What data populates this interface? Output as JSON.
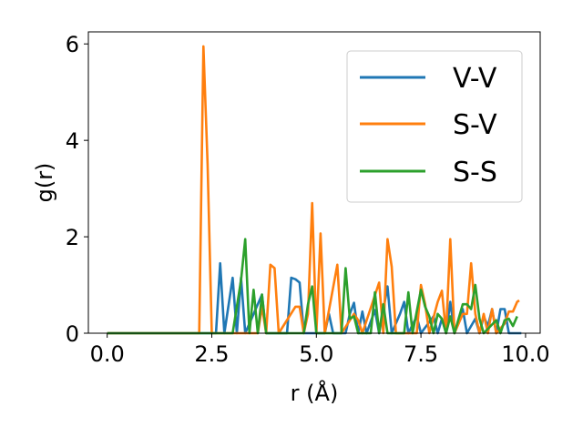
{
  "chart_data": {
    "type": "line",
    "title": "",
    "xlabel": "r (Å)",
    "ylabel": "g(r)",
    "xlim": [
      -0.45,
      10.35
    ],
    "ylim": [
      0,
      6.25
    ],
    "xticks": [
      0.0,
      2.5,
      5.0,
      7.5,
      10.0
    ],
    "xtick_labels": [
      "0.0",
      "2.5",
      "5.0",
      "7.5",
      "10.0"
    ],
    "yticks": [
      0,
      2,
      4,
      6
    ],
    "ytick_labels": [
      "0",
      "2",
      "4",
      "6"
    ],
    "grid": false,
    "legend_position": "top-right",
    "series": [
      {
        "name": "V-V",
        "color": "#1f77b4",
        "points": [
          [
            0,
            0
          ],
          [
            2.6,
            0
          ],
          [
            2.7,
            1.45
          ],
          [
            2.8,
            0
          ],
          [
            3.0,
            1.15
          ],
          [
            3.1,
            0
          ],
          [
            3.2,
            1.15
          ],
          [
            3.3,
            0
          ],
          [
            3.7,
            0.8
          ],
          [
            3.8,
            0
          ],
          [
            4.3,
            0
          ],
          [
            4.4,
            1.15
          ],
          [
            4.5,
            1.12
          ],
          [
            4.6,
            1.05
          ],
          [
            4.7,
            0
          ],
          [
            5.2,
            0
          ],
          [
            5.3,
            0.4
          ],
          [
            5.4,
            0
          ],
          [
            5.7,
            0
          ],
          [
            5.8,
            0.4
          ],
          [
            5.9,
            0.63
          ],
          [
            6.0,
            0
          ],
          [
            6.1,
            0.45
          ],
          [
            6.2,
            0
          ],
          [
            6.4,
            0.48
          ],
          [
            6.5,
            0
          ],
          [
            6.7,
            0.97
          ],
          [
            6.8,
            0
          ],
          [
            7.0,
            0.4
          ],
          [
            7.1,
            0.65
          ],
          [
            7.2,
            0
          ],
          [
            7.4,
            0.35
          ],
          [
            7.5,
            0
          ],
          [
            7.8,
            0.35
          ],
          [
            7.9,
            0
          ],
          [
            8.0,
            0.3
          ],
          [
            8.1,
            0
          ],
          [
            8.2,
            0.65
          ],
          [
            8.3,
            0
          ],
          [
            8.5,
            0.5
          ],
          [
            8.6,
            0
          ],
          [
            8.8,
            0.3
          ],
          [
            8.9,
            0
          ],
          [
            9.0,
            0.35
          ],
          [
            9.1,
            0.15
          ],
          [
            9.2,
            0.5
          ],
          [
            9.3,
            0
          ],
          [
            9.4,
            0.5
          ],
          [
            9.5,
            0.5
          ],
          [
            9.6,
            0
          ],
          [
            9.9,
            0
          ]
        ]
      },
      {
        "name": "S-V",
        "color": "#ff7f0e",
        "points": [
          [
            0,
            0
          ],
          [
            2.2,
            0
          ],
          [
            2.3,
            5.95
          ],
          [
            2.4,
            3.5
          ],
          [
            2.5,
            0
          ],
          [
            3.6,
            0
          ],
          [
            3.7,
            0.55
          ],
          [
            3.8,
            0
          ],
          [
            3.9,
            1.42
          ],
          [
            4.0,
            1.35
          ],
          [
            4.1,
            0
          ],
          [
            4.5,
            0.55
          ],
          [
            4.6,
            0.55
          ],
          [
            4.7,
            0
          ],
          [
            4.8,
            0.4
          ],
          [
            4.9,
            2.7
          ],
          [
            5.0,
            0
          ],
          [
            5.1,
            2.07
          ],
          [
            5.2,
            0
          ],
          [
            5.5,
            1.42
          ],
          [
            5.6,
            0
          ],
          [
            5.9,
            0.4
          ],
          [
            6.0,
            0.27
          ],
          [
            6.1,
            0
          ],
          [
            6.5,
            1.05
          ],
          [
            6.6,
            0
          ],
          [
            6.7,
            1.95
          ],
          [
            6.8,
            1.38
          ],
          [
            6.9,
            0
          ],
          [
            7.4,
            0
          ],
          [
            7.5,
            1.0
          ],
          [
            7.6,
            0.6
          ],
          [
            7.7,
            0
          ],
          [
            7.9,
            0.65
          ],
          [
            8.0,
            0.88
          ],
          [
            8.1,
            0
          ],
          [
            8.2,
            1.95
          ],
          [
            8.3,
            0
          ],
          [
            8.5,
            0.4
          ],
          [
            8.6,
            0.4
          ],
          [
            8.7,
            1.45
          ],
          [
            8.8,
            0.4
          ],
          [
            8.9,
            0
          ],
          [
            9.0,
            0.4
          ],
          [
            9.1,
            0
          ],
          [
            9.2,
            0.5
          ],
          [
            9.3,
            0
          ],
          [
            9.5,
            0.2
          ],
          [
            9.6,
            0.45
          ],
          [
            9.7,
            0.45
          ],
          [
            9.8,
            0.65
          ],
          [
            9.85,
            0.68
          ]
        ]
      },
      {
        "name": "S-S",
        "color": "#2ca02c",
        "points": [
          [
            0,
            0
          ],
          [
            3.0,
            0
          ],
          [
            3.1,
            0.55
          ],
          [
            3.2,
            1.1
          ],
          [
            3.3,
            1.95
          ],
          [
            3.4,
            0
          ],
          [
            3.5,
            0.9
          ],
          [
            3.6,
            0
          ],
          [
            3.7,
            0.8
          ],
          [
            3.8,
            0
          ],
          [
            4.7,
            0
          ],
          [
            4.8,
            0.6
          ],
          [
            4.9,
            0.97
          ],
          [
            5.0,
            0
          ],
          [
            5.6,
            0
          ],
          [
            5.7,
            1.35
          ],
          [
            5.8,
            0.3
          ],
          [
            5.9,
            0.35
          ],
          [
            6.0,
            0
          ],
          [
            6.3,
            0
          ],
          [
            6.4,
            0.85
          ],
          [
            6.5,
            0
          ],
          [
            6.6,
            0.6
          ],
          [
            6.7,
            0
          ],
          [
            7.1,
            0
          ],
          [
            7.2,
            0.85
          ],
          [
            7.3,
            0
          ],
          [
            7.5,
            0.9
          ],
          [
            7.6,
            0.55
          ],
          [
            7.7,
            0.35
          ],
          [
            7.8,
            0
          ],
          [
            7.9,
            0.4
          ],
          [
            8.0,
            0.3
          ],
          [
            8.1,
            0
          ],
          [
            8.2,
            0.35
          ],
          [
            8.3,
            0
          ],
          [
            8.5,
            0.6
          ],
          [
            8.6,
            0.6
          ],
          [
            8.7,
            0.5
          ],
          [
            8.8,
            1.0
          ],
          [
            8.9,
            0.3
          ],
          [
            9.0,
            0
          ],
          [
            9.3,
            0.27
          ],
          [
            9.4,
            0
          ],
          [
            9.5,
            0.27
          ],
          [
            9.6,
            0.3
          ],
          [
            9.7,
            0.15
          ],
          [
            9.8,
            0.35
          ]
        ]
      }
    ]
  }
}
